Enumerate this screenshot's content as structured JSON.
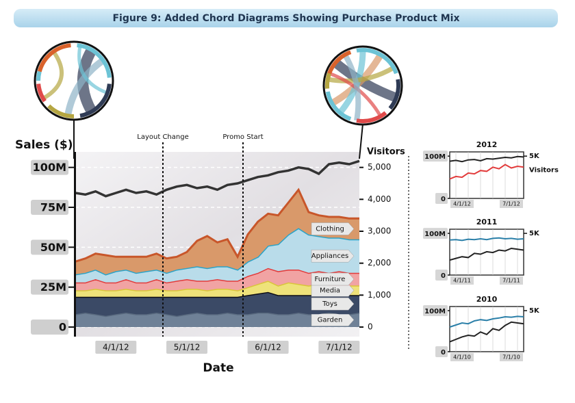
{
  "title": "Figure 9: Added Chord Diagrams Showing Purchase Product Mix",
  "annotations": [
    "Layout Change",
    "Promo Start"
  ],
  "chart_data": [
    {
      "type": "area",
      "stacked": true,
      "y_label": "Sales ($)",
      "y2_label": "Visitors",
      "x_label": "Date",
      "categories": [
        null,
        null,
        null,
        null,
        "4/1/12",
        null,
        null,
        null,
        null,
        null,
        null,
        "5/1/12",
        null,
        null,
        null,
        null,
        null,
        null,
        null,
        "6/1/12",
        null,
        null,
        null,
        null,
        null,
        null,
        "7/1/12",
        null,
        null
      ],
      "ylim": [
        0,
        105000000
      ],
      "yticks": [
        0,
        {
          "value": 25000000,
          "label": "25M"
        },
        {
          "value": 50000000,
          "label": "50M"
        },
        {
          "value": 75000000,
          "label": "75M"
        },
        {
          "value": 100000000,
          "label": "100M"
        }
      ],
      "y2lim": [
        0,
        5250
      ],
      "y2ticks": [
        0,
        {
          "value": 1000,
          "label": "1,000"
        },
        {
          "value": 2000,
          "label": "2,000"
        },
        {
          "value": 3000,
          "label": "3,000"
        },
        {
          "value": 4000,
          "label": "4,000"
        },
        {
          "value": 5000,
          "label": "5,000"
        }
      ],
      "grid": true,
      "series": [
        {
          "name": "Garden",
          "color": "#6f8197",
          "line_color": "#5a6b80",
          "values": [
            8000000,
            9000000,
            8000000,
            7000000,
            8000000,
            9000000,
            8000000,
            8000000,
            9000000,
            8000000,
            7000000,
            8000000,
            9000000,
            8000000,
            8000000,
            9000000,
            8000000,
            8000000,
            9000000,
            9000000,
            8000000,
            8000000,
            9000000,
            8000000,
            8000000,
            9000000,
            8000000,
            8000000,
            9000000
          ]
        },
        {
          "name": "Toys",
          "color": "#3b4a66",
          "line_color": "#0d0d14",
          "values": [
            11000000,
            10000000,
            11000000,
            12000000,
            11000000,
            10000000,
            11000000,
            11000000,
            10000000,
            11000000,
            12000000,
            11000000,
            10000000,
            11000000,
            11000000,
            10000000,
            11000000,
            12000000,
            12000000,
            13000000,
            12000000,
            12000000,
            11000000,
            12000000,
            12000000,
            11000000,
            12000000,
            12000000,
            11000000
          ]
        },
        {
          "name": "Media",
          "color": "#eee27a",
          "line_color": "#d9c53a",
          "values": [
            4000000,
            4000000,
            5000000,
            4000000,
            4000000,
            5000000,
            4000000,
            4000000,
            5000000,
            4000000,
            4000000,
            5000000,
            5000000,
            4000000,
            5000000,
            5000000,
            4000000,
            5000000,
            6000000,
            7000000,
            6000000,
            8000000,
            7000000,
            6000000,
            7000000,
            6000000,
            6000000,
            6000000,
            6000000
          ]
        },
        {
          "name": "Furniture",
          "color": "#f1a3a3",
          "line_color": "#e23b3b",
          "values": [
            5000000,
            5000000,
            6000000,
            5000000,
            5000000,
            6000000,
            5000000,
            5000000,
            6000000,
            5000000,
            6000000,
            6000000,
            5000000,
            6000000,
            6000000,
            5000000,
            6000000,
            7000000,
            7000000,
            8000000,
            9000000,
            8000000,
            9000000,
            8000000,
            8000000,
            8000000,
            9000000,
            8000000,
            8000000
          ]
        },
        {
          "name": "Appliances",
          "color": "#b9dcea",
          "line_color": "#2aa3c8",
          "values": [
            5000000,
            6000000,
            6000000,
            5000000,
            7000000,
            6000000,
            6000000,
            7000000,
            6000000,
            6000000,
            7000000,
            7000000,
            9000000,
            8000000,
            8000000,
            9000000,
            7000000,
            9000000,
            10000000,
            14000000,
            17000000,
            22000000,
            26000000,
            24000000,
            22000000,
            22000000,
            21000000,
            21000000,
            21000000
          ]
        },
        {
          "name": "Clothing",
          "color": "#d9996a",
          "line_color": "#c8562a",
          "values": [
            8000000,
            9000000,
            10000000,
            12000000,
            9000000,
            8000000,
            10000000,
            9000000,
            10000000,
            9000000,
            8000000,
            10000000,
            16000000,
            20000000,
            15000000,
            17000000,
            8000000,
            17000000,
            22000000,
            20000000,
            18000000,
            20000000,
            24000000,
            14000000,
            13000000,
            13000000,
            13000000,
            13000000,
            13000000
          ]
        },
        {
          "axis": "y2",
          "color": "#333333",
          "values": [
            4200,
            4150,
            4250,
            4100,
            4200,
            4300,
            4200,
            4250,
            4150,
            4300,
            4400,
            4450,
            4350,
            4400,
            4300,
            4450,
            4500,
            4600,
            4700,
            4750,
            4850,
            4900,
            5000,
            4950,
            4800,
            5100,
            5150,
            5100,
            5200
          ]
        }
      ]
    },
    {
      "type": "line",
      "title": "2012",
      "categories": [
        null,
        null,
        "4/1/12",
        null,
        null,
        null,
        null,
        null,
        null,
        null,
        "7/1/12",
        null,
        null
      ],
      "ylim": [
        0,
        110000000
      ],
      "yticks": [
        0,
        {
          "value": 100000000,
          "label": "100M"
        }
      ],
      "y2lim": [
        0,
        5500
      ],
      "y2ticks": [
        {
          "value": 5000,
          "label": "5K"
        }
      ],
      "series": [
        {
          "color": "#222222",
          "values": [
            88000000,
            90000000,
            87000000,
            91000000,
            92000000,
            89000000,
            94000000,
            93000000,
            95000000,
            97000000,
            96000000,
            99000000,
            98000000
          ]
        },
        {
          "name": "Visitors",
          "axis": "y2",
          "color": "#e23b3b",
          "values": [
            2300,
            2600,
            2500,
            3000,
            2900,
            3300,
            3200,
            3700,
            3500,
            4000,
            3600,
            3800,
            3700
          ]
        }
      ]
    },
    {
      "type": "line",
      "title": "2011",
      "categories": [
        null,
        null,
        "4/1/11",
        null,
        null,
        null,
        null,
        null,
        null,
        null,
        "7/1/11",
        null,
        null
      ],
      "ylim": [
        0,
        110000000
      ],
      "yticks": [
        0,
        {
          "value": 100000000,
          "label": "100M"
        }
      ],
      "y2lim": [
        0,
        5500
      ],
      "y2ticks": [
        {
          "value": 5000,
          "label": "5K"
        }
      ],
      "series": [
        {
          "color": "#2a7fa8",
          "values": [
            84000000,
            85000000,
            83000000,
            86000000,
            85000000,
            87000000,
            85000000,
            88000000,
            89000000,
            87000000,
            88000000,
            86000000,
            87000000
          ]
        },
        {
          "axis": "y2",
          "color": "#222222",
          "values": [
            1800,
            2000,
            2200,
            2100,
            2600,
            2500,
            2800,
            2700,
            3000,
            2900,
            3200,
            3100,
            3000
          ]
        }
      ]
    },
    {
      "type": "line",
      "title": "2010",
      "categories": [
        null,
        null,
        "4/1/10",
        null,
        null,
        null,
        null,
        null,
        null,
        null,
        "7/1/10",
        null,
        null
      ],
      "ylim": [
        0,
        110000000
      ],
      "yticks": [
        0,
        {
          "value": 100000000,
          "label": "100M"
        }
      ],
      "y2lim": [
        0,
        5500
      ],
      "y2ticks": [
        {
          "value": 5000,
          "label": "5K"
        }
      ],
      "series": [
        {
          "color": "#2a7fa8",
          "values": [
            60000000,
            65000000,
            70000000,
            68000000,
            75000000,
            78000000,
            76000000,
            80000000,
            82000000,
            85000000,
            84000000,
            86000000,
            85000000
          ]
        },
        {
          "axis": "y2",
          "color": "#222222",
          "values": [
            1200,
            1500,
            1800,
            2000,
            1900,
            2400,
            2100,
            2800,
            2600,
            3200,
            3600,
            3500,
            3400
          ]
        }
      ]
    }
  ]
}
